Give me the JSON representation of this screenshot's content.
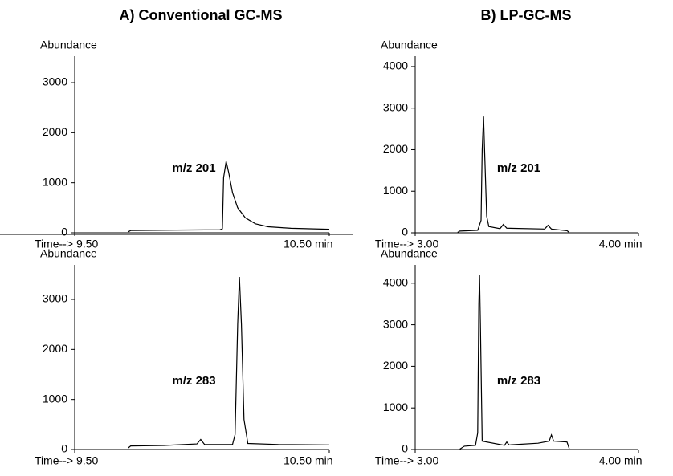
{
  "chart_data": [
    {
      "type": "line",
      "title": "A) Conventional GC-MS",
      "ylabel": "Abundance",
      "xlabel": "Time-->",
      "xunit": "min",
      "annotation": "m/z 201",
      "xlim": [
        9.5,
        10.5
      ],
      "xticks": [
        {
          "value": 9.5,
          "label": "9.50"
        },
        {
          "value": 10.5,
          "label": "10.50"
        }
      ],
      "ylim": [
        0,
        3530
      ],
      "yticks": [
        0,
        1000,
        2000,
        3000
      ],
      "color": "#000000",
      "x": [
        9.71,
        9.72,
        9.9,
        10.07,
        10.08,
        10.085,
        10.095,
        10.105,
        10.12,
        10.14,
        10.17,
        10.21,
        10.26,
        10.35,
        10.5
      ],
      "values": [
        20,
        45,
        55,
        60,
        80,
        1100,
        1430,
        1200,
        800,
        500,
        300,
        180,
        120,
        90,
        70
      ]
    },
    {
      "type": "line",
      "title": "B) LP-GC-MS",
      "ylabel": "Abundance",
      "xlabel": "Time-->",
      "xunit": "min",
      "annotation": "m/z 201",
      "xlim": [
        3.0,
        4.0
      ],
      "xticks": [
        {
          "value": 3.0,
          "label": "3.00"
        },
        {
          "value": 4.0,
          "label": "4.00"
        }
      ],
      "ylim": [
        0,
        4250
      ],
      "yticks": [
        0,
        1000,
        2000,
        3000,
        4000
      ],
      "color": "#000000",
      "x": [
        3.19,
        3.2,
        3.28,
        3.295,
        3.3,
        3.306,
        3.312,
        3.32,
        3.33,
        3.38,
        3.395,
        3.41,
        3.58,
        3.595,
        3.61,
        3.68,
        3.69
      ],
      "values": [
        10,
        40,
        60,
        300,
        2000,
        2800,
        1800,
        400,
        150,
        100,
        200,
        110,
        90,
        180,
        90,
        50,
        10
      ]
    },
    {
      "type": "line",
      "ylabel": "Abundance",
      "xlabel": "Time-->",
      "xunit": "min",
      "annotation": "m/z 283",
      "xlim": [
        9.5,
        10.5
      ],
      "xticks": [
        {
          "value": 9.5,
          "label": "9.50"
        },
        {
          "value": 10.5,
          "label": "10.50"
        }
      ],
      "ylim": [
        0,
        3690
      ],
      "yticks": [
        0,
        1000,
        2000,
        3000
      ],
      "color": "#000000",
      "x": [
        9.71,
        9.72,
        9.85,
        9.98,
        9.995,
        10.01,
        10.12,
        10.13,
        10.14,
        10.147,
        10.155,
        10.165,
        10.18,
        10.3,
        10.5
      ],
      "values": [
        30,
        70,
        80,
        110,
        200,
        100,
        100,
        300,
        2500,
        3450,
        2500,
        600,
        120,
        100,
        90
      ]
    },
    {
      "type": "line",
      "ylabel": "Abundance",
      "xlabel": "Time-->",
      "xunit": "min",
      "annotation": "m/z 283",
      "xlim": [
        3.0,
        4.0
      ],
      "xticks": [
        {
          "value": 3.0,
          "label": "3.00"
        },
        {
          "value": 4.0,
          "label": "4.00"
        }
      ],
      "ylim": [
        0,
        4440
      ],
      "yticks": [
        0,
        1000,
        2000,
        3000,
        4000
      ],
      "color": "#000000",
      "x": [
        3.2,
        3.22,
        3.27,
        3.28,
        3.285,
        3.288,
        3.292,
        3.3,
        3.4,
        3.41,
        3.42,
        3.55,
        3.6,
        3.61,
        3.62,
        3.68,
        3.69
      ],
      "values": [
        10,
        80,
        100,
        400,
        3500,
        4200,
        3000,
        200,
        100,
        180,
        110,
        150,
        200,
        350,
        200,
        180,
        20
      ]
    }
  ]
}
